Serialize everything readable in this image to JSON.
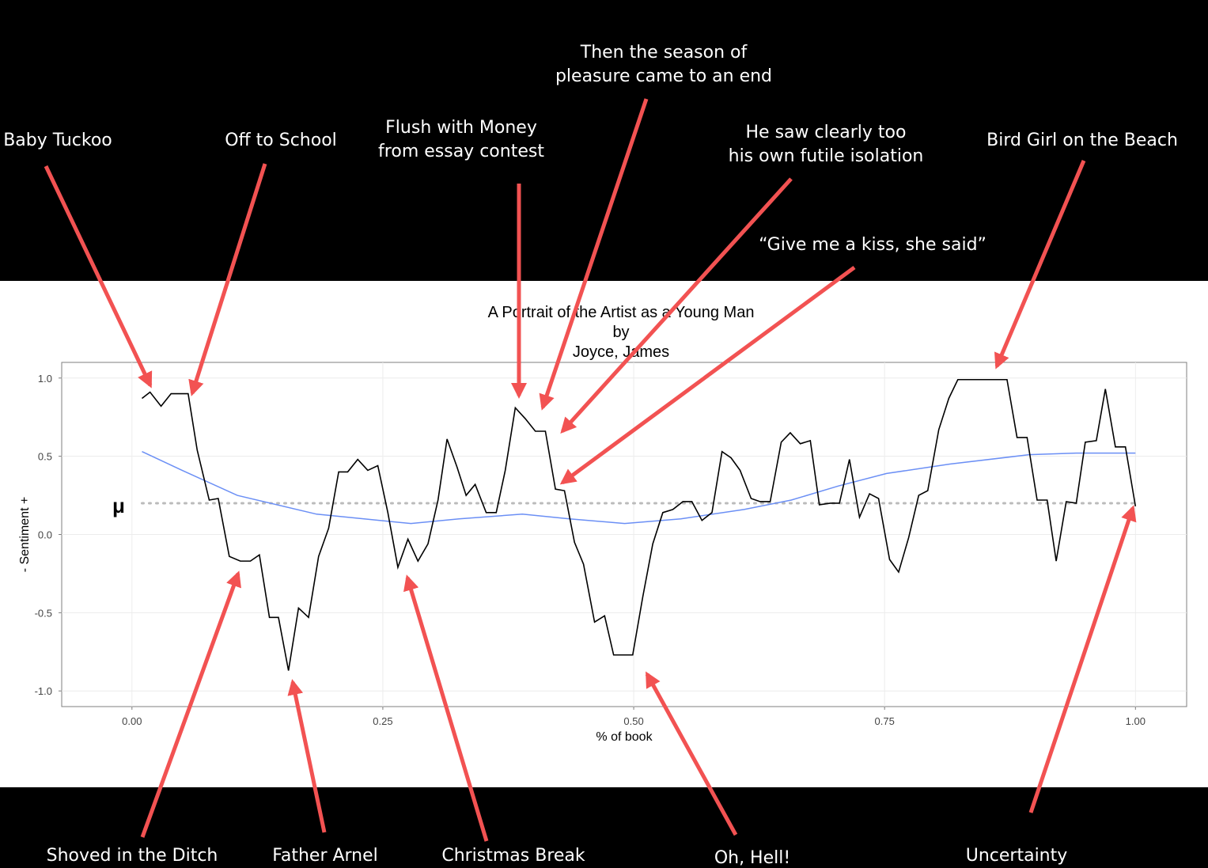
{
  "chart_data": {
    "type": "line",
    "title": [
      "A Portrait of the Artist as a Young Man",
      "by",
      "Joyce, James"
    ],
    "x_label": "% of book",
    "y_label": "- Sentiment +",
    "xlim": [
      -0.07,
      1.051
    ],
    "ylim": [
      -1.1,
      1.1
    ],
    "xticks": [
      {
        "value": 0,
        "label": "0.00"
      },
      {
        "value": 0.25,
        "label": "0.25"
      },
      {
        "value": 0.5,
        "label": "0.50"
      },
      {
        "value": 0.75,
        "label": "0.75"
      },
      {
        "value": 1,
        "label": "1.00"
      }
    ],
    "yticks": [
      {
        "value": -1,
        "label": "-1.0"
      },
      {
        "value": -0.5,
        "label": "-0.5"
      },
      {
        "value": 0,
        "label": "0.0"
      },
      {
        "value": 0.5,
        "label": "0.5"
      },
      {
        "value": 1,
        "label": "1.0"
      }
    ],
    "grid": true,
    "mean": 0.2,
    "mean_label": "μ",
    "mean_color": "#bbbbbb",
    "series": [
      {
        "color": "#000000",
        "x": [
          0.01,
          0.018,
          0.029,
          0.039,
          0.056,
          0.065,
          0.077,
          0.086,
          0.097,
          0.108,
          0.118,
          0.127,
          0.137,
          0.146,
          0.156,
          0.166,
          0.176,
          0.186,
          0.196,
          0.206,
          0.215,
          0.225,
          0.235,
          0.245,
          0.255,
          0.265,
          0.275,
          0.285,
          0.295,
          0.305,
          0.314,
          0.324,
          0.333,
          0.342,
          0.353,
          0.363,
          0.372,
          0.382,
          0.392,
          0.402,
          0.412,
          0.422,
          0.431,
          0.441,
          0.45,
          0.461,
          0.471,
          0.48,
          0.49,
          0.499,
          0.509,
          0.519,
          0.529,
          0.539,
          0.549,
          0.558,
          0.568,
          0.578,
          0.588,
          0.597,
          0.606,
          0.617,
          0.626,
          0.636,
          0.647,
          0.656,
          0.666,
          0.676,
          0.685,
          0.696,
          0.705,
          0.715,
          0.725,
          0.735,
          0.744,
          0.755,
          0.764,
          0.774,
          0.784,
          0.793,
          0.804,
          0.814,
          0.823,
          0.833,
          0.842,
          0.852,
          0.863,
          0.872,
          0.882,
          0.892,
          0.902,
          0.912,
          0.921,
          0.931,
          0.941,
          0.95,
          0.961,
          0.97,
          0.98,
          0.99,
          1.0
        ],
        "values": [
          0.87,
          0.91,
          0.82,
          0.9,
          0.9,
          0.54,
          0.22,
          0.23,
          -0.14,
          -0.17,
          -0.17,
          -0.13,
          -0.53,
          -0.53,
          -0.87,
          -0.47,
          -0.53,
          -0.14,
          0.04,
          0.4,
          0.4,
          0.48,
          0.41,
          0.44,
          0.14,
          -0.21,
          -0.03,
          -0.17,
          -0.06,
          0.22,
          0.61,
          0.43,
          0.25,
          0.32,
          0.14,
          0.14,
          0.41,
          0.81,
          0.74,
          0.66,
          0.66,
          0.29,
          0.28,
          -0.05,
          -0.19,
          -0.56,
          -0.52,
          -0.77,
          -0.77,
          -0.77,
          -0.4,
          -0.06,
          0.14,
          0.16,
          0.21,
          0.21,
          0.09,
          0.14,
          0.53,
          0.49,
          0.41,
          0.23,
          0.21,
          0.21,
          0.59,
          0.65,
          0.58,
          0.6,
          0.19,
          0.2,
          0.2,
          0.48,
          0.11,
          0.26,
          0.23,
          -0.16,
          -0.24,
          -0.02,
          0.25,
          0.28,
          0.67,
          0.87,
          0.99,
          0.99,
          0.99,
          0.99,
          0.99,
          0.99,
          0.62,
          0.62,
          0.22,
          0.22,
          -0.17,
          0.21,
          0.2,
          0.59,
          0.6,
          0.93,
          0.56,
          0.56,
          0.18
        ]
      },
      {
        "color": "#6b8ff5",
        "x": [
          0.01,
          0.05,
          0.105,
          0.184,
          0.247,
          0.278,
          0.326,
          0.389,
          0.436,
          0.491,
          0.547,
          0.61,
          0.657,
          0.704,
          0.752,
          0.815,
          0.894,
          0.941,
          1.0
        ],
        "values": [
          0.53,
          0.41,
          0.25,
          0.13,
          0.09,
          0.07,
          0.1,
          0.13,
          0.1,
          0.07,
          0.1,
          0.16,
          0.22,
          0.31,
          0.39,
          0.45,
          0.51,
          0.52,
          0.52
        ]
      }
    ],
    "annotations": [
      [
        "Baby Tuckoo"
      ],
      [
        "Off to School"
      ],
      [
        "Flush with Money",
        "from essay contest"
      ],
      [
        "Then the season of",
        "pleasure came to an end"
      ],
      [
        "He saw clearly too",
        "his own futile isolation"
      ],
      [
        "“Give me a kiss, she said”"
      ],
      [
        "Bird Girl on the Beach"
      ],
      [
        "Shoved in the Ditch"
      ],
      [
        "Father Arnel"
      ],
      [
        "Christmas Break"
      ],
      [
        "Oh, Hell!"
      ],
      [
        "Uncertainty"
      ]
    ]
  }
}
